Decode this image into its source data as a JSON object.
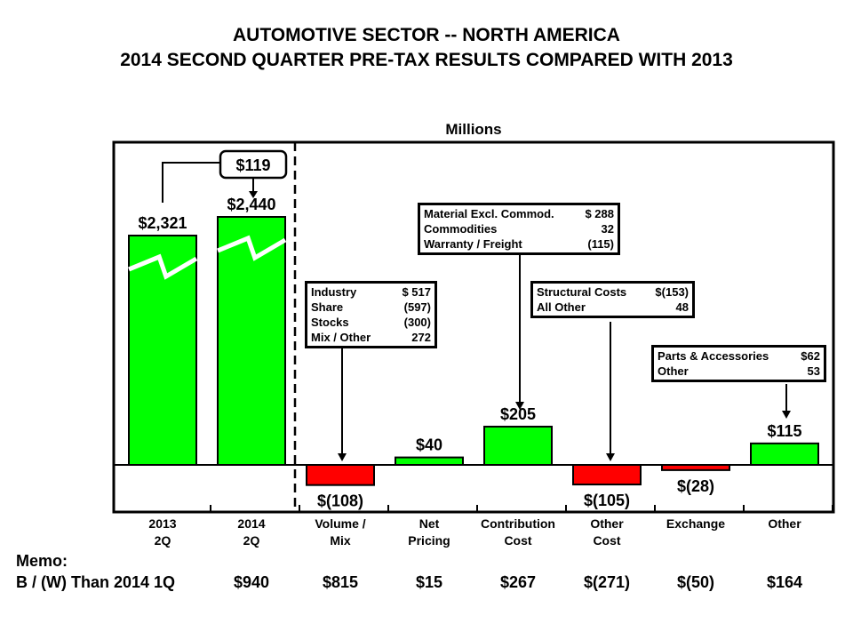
{
  "title_line1": "AUTOMOTIVE SECTOR -- NORTH AMERICA",
  "title_line2": "2014 SECOND QUARTER PRE-TAX RESULTS COMPARED WITH 2013",
  "chart_data": {
    "type": "bar",
    "subtitle": "Millions",
    "categories": [
      "2013\n2Q",
      "2014\n2Q",
      "Volume /\nMix",
      "Net\nPricing",
      "Contribution\nCost",
      "Other\nCost",
      "Exchange",
      "Other"
    ],
    "values": [
      2321,
      2440,
      -108,
      40,
      205,
      -105,
      -28,
      115
    ],
    "data_labels": [
      "$2,321",
      "$2,440",
      "$(108)",
      "$40",
      "$205",
      "$(105)",
      "$(28)",
      "$115"
    ],
    "broken_axis_bars": [
      0,
      1
    ],
    "change_label": "$119",
    "colors": {
      "positive": "#00ff00",
      "negative": "#ff0000"
    },
    "callouts": {
      "volume_mix": [
        [
          "Industry",
          "$ 517"
        ],
        [
          "Share",
          "(597)"
        ],
        [
          "Stocks",
          "(300)"
        ],
        [
          "Mix / Other",
          "272"
        ]
      ],
      "contribution_cost": [
        [
          "Material Excl. Commod.",
          "$ 288"
        ],
        [
          "Commodities",
          "32"
        ],
        [
          "Warranty / Freight",
          "(115)"
        ]
      ],
      "other_cost": [
        [
          "Structural Costs",
          "$(153)"
        ],
        [
          "All Other",
          "48"
        ]
      ],
      "other": [
        [
          "Parts & Accessories",
          "$62"
        ],
        [
          "Other",
          "53"
        ]
      ]
    }
  },
  "memo": {
    "label": "Memo:",
    "row_label": "B / (W) Than 2014 1Q",
    "values": [
      "$940",
      "$815",
      "$15",
      "$267",
      "$(271)",
      "$(50)",
      "$164"
    ]
  }
}
